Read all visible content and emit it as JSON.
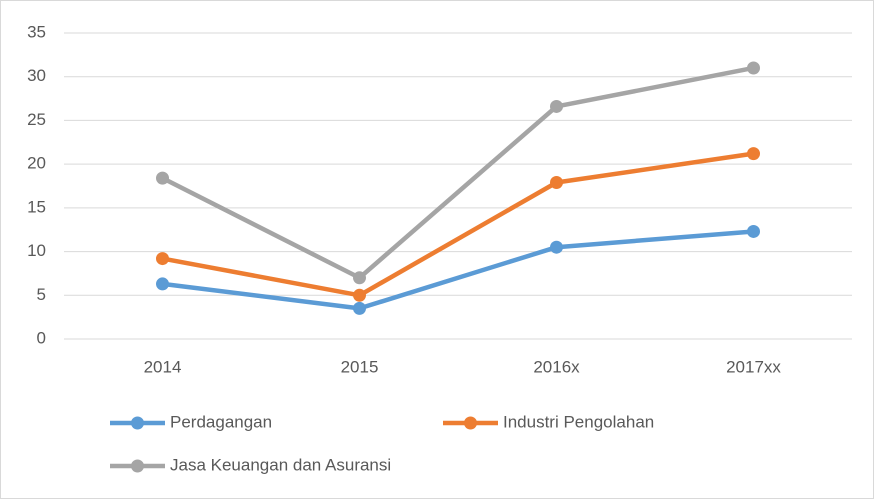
{
  "chart_data": {
    "type": "line",
    "categories": [
      "2014",
      "2015",
      "2016x",
      "2017xx"
    ],
    "series": [
      {
        "name": "Perdagangan",
        "color": "#5b9bd5",
        "values": [
          6.3,
          3.5,
          10.5,
          12.3
        ]
      },
      {
        "name": "Industri Pengolahan",
        "color": "#ed7d31",
        "values": [
          9.2,
          5.0,
          17.9,
          21.2
        ]
      },
      {
        "name": "Jasa Keuangan dan Asuransi",
        "color": "#a5a5a5",
        "values": [
          18.4,
          7.0,
          26.6,
          31.0
        ]
      }
    ],
    "ylim": [
      0,
      35
    ],
    "yticks": [
      0,
      5,
      10,
      15,
      20,
      25,
      30,
      35
    ],
    "grid": true,
    "legend": "bottom"
  }
}
